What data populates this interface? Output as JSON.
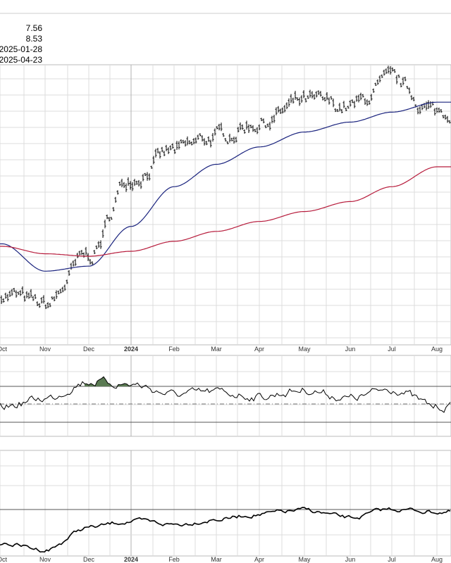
{
  "info_values": [
    "7.56",
    "8.53",
    "2025-01-28",
    "2025-04-23"
  ],
  "colors": {
    "price": "#000000",
    "ma_short": "#1a237e",
    "ma_long": "#b71c3c",
    "grid": "#dcdcdc",
    "overbought_fill": "#5a7a52"
  },
  "chart_data": [
    {
      "type": "ohlc",
      "panel": "price",
      "x_tick_labels": [
        "Oct",
        "Nov",
        "Dec",
        "2024",
        "Feb",
        "Mar",
        "Apr",
        "May",
        "Jun",
        "Jul",
        "Aug"
      ],
      "series": [
        {
          "style": "ohlc-bars",
          "color": "#000000",
          "x": [
            "Oct",
            "Nov",
            "Dec",
            "2024",
            "Feb",
            "Mar",
            "Apr",
            "May",
            "Jun",
            "Jul",
            "Aug"
          ],
          "values": [
            0.15,
            0.1,
            0.3,
            0.62,
            0.72,
            0.78,
            0.84,
            0.92,
            0.9,
            1.0,
            0.88
          ]
        },
        {
          "style": "line",
          "color": "#1a237e",
          "x": [
            "Oct",
            "Nov",
            "Dec",
            "2024",
            "Feb",
            "Mar",
            "Apr",
            "May",
            "Jun",
            "Jul",
            "Aug"
          ],
          "values": [
            0.35,
            0.24,
            0.26,
            0.42,
            0.58,
            0.67,
            0.74,
            0.8,
            0.84,
            0.88,
            0.92
          ]
        },
        {
          "style": "line",
          "color": "#b71c3c",
          "x": [
            "Oct",
            "Nov",
            "Dec",
            "2024",
            "Feb",
            "Mar",
            "Apr",
            "May",
            "Jun",
            "Jul",
            "Aug"
          ],
          "values": [
            0.34,
            0.31,
            0.3,
            0.32,
            0.36,
            0.4,
            0.44,
            0.48,
            0.52,
            0.58,
            0.66
          ]
        }
      ],
      "grid": true
    },
    {
      "type": "line",
      "panel": "oscillator",
      "x_tick_labels": [],
      "series": [
        {
          "color": "#000000",
          "x": [
            "Oct",
            "Nov",
            "Dec",
            "2024",
            "Feb",
            "Mar",
            "Apr",
            "May",
            "Jun",
            "Jul",
            "Aug"
          ],
          "values": [
            0.4,
            0.55,
            0.85,
            0.8,
            0.62,
            0.66,
            0.58,
            0.7,
            0.55,
            0.72,
            0.4
          ]
        }
      ],
      "reference_lines": [
        "upper",
        "middle",
        "lower"
      ],
      "grid": true
    },
    {
      "type": "line",
      "panel": "bottom",
      "x_tick_labels": [
        "Oct",
        "Nov",
        "Dec",
        "2024",
        "Feb",
        "Mar",
        "Apr",
        "May",
        "Jun",
        "Jul",
        "Aug"
      ],
      "series": [
        {
          "color": "#000000",
          "x": [
            "Oct",
            "Nov",
            "Dec",
            "2024",
            "Feb",
            "Mar",
            "Apr",
            "May",
            "Jun",
            "Jul",
            "Aug"
          ],
          "values": [
            0.2,
            0.1,
            0.45,
            0.55,
            0.5,
            0.58,
            0.66,
            0.72,
            0.6,
            0.74,
            0.7
          ]
        }
      ],
      "reference_lines": [
        "upper"
      ],
      "grid": true
    }
  ]
}
